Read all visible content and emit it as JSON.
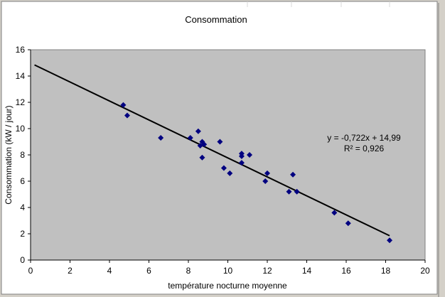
{
  "chart_data": {
    "type": "scatter",
    "title": "Consommation",
    "xlabel": "température nocturne moyenne",
    "ylabel": "Consommation (kW / jour)",
    "xlim": [
      0,
      20
    ],
    "ylim": [
      0,
      16
    ],
    "x_ticks": [
      0,
      2,
      4,
      6,
      8,
      10,
      12,
      14,
      16,
      18,
      20
    ],
    "y_ticks": [
      0,
      2,
      4,
      6,
      8,
      10,
      12,
      14,
      16
    ],
    "grid": false,
    "series": [
      {
        "name": "Consommation",
        "marker": "diamond",
        "color": "#000080",
        "points": [
          {
            "x": 4.7,
            "y": 11.8
          },
          {
            "x": 4.9,
            "y": 11.0
          },
          {
            "x": 6.6,
            "y": 9.3
          },
          {
            "x": 8.1,
            "y": 9.3
          },
          {
            "x": 8.5,
            "y": 9.8
          },
          {
            "x": 8.6,
            "y": 8.7
          },
          {
            "x": 8.7,
            "y": 9.0
          },
          {
            "x": 8.8,
            "y": 8.8
          },
          {
            "x": 8.7,
            "y": 7.8
          },
          {
            "x": 9.6,
            "y": 9.0
          },
          {
            "x": 9.8,
            "y": 7.0
          },
          {
            "x": 10.1,
            "y": 6.6
          },
          {
            "x": 10.7,
            "y": 8.1
          },
          {
            "x": 10.7,
            "y": 7.9
          },
          {
            "x": 10.7,
            "y": 7.4
          },
          {
            "x": 11.1,
            "y": 8.0
          },
          {
            "x": 11.9,
            "y": 6.0
          },
          {
            "x": 12.0,
            "y": 6.6
          },
          {
            "x": 13.1,
            "y": 5.2
          },
          {
            "x": 13.3,
            "y": 6.5
          },
          {
            "x": 13.5,
            "y": 5.2
          },
          {
            "x": 15.4,
            "y": 3.6
          },
          {
            "x": 16.1,
            "y": 2.8
          },
          {
            "x": 18.2,
            "y": 1.5
          }
        ]
      }
    ],
    "trendline": {
      "type": "linear",
      "slope": -0.722,
      "intercept": 14.99,
      "x_range": [
        0.2,
        18.2
      ],
      "color": "#000000"
    },
    "annotations": {
      "equation": "y = -0,722x + 14,99",
      "r_squared": "R² = 0,926"
    },
    "colors": {
      "plot_area": "#c0c0c0",
      "chart_area": "#ffffff",
      "marker": "#000080",
      "frame": "#d4d0c8"
    }
  }
}
